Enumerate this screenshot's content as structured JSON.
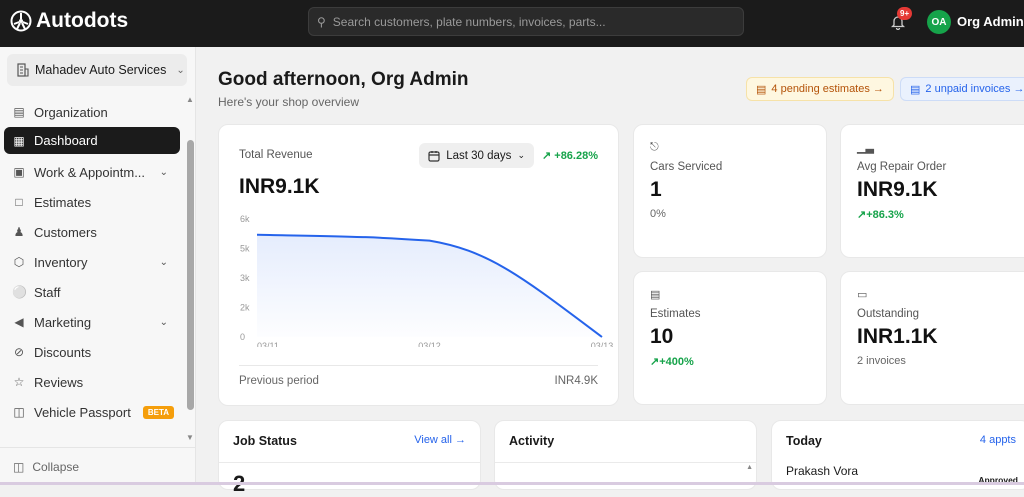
{
  "header": {
    "app_name": "Autodots",
    "search_placeholder": "Search customers, plate numbers, invoices, parts...",
    "notification_count": "9+",
    "user_initials": "OA",
    "user_name": "Org Admin",
    "avatar_color": "#16a34a"
  },
  "sidebar": {
    "org_name": "Mahadev Auto Services",
    "items": [
      {
        "label": "Organization",
        "icon": "building-icon"
      },
      {
        "label": "Dashboard",
        "icon": "grid-icon",
        "active": true
      },
      {
        "label": "Work & Appointm...",
        "icon": "calendar-icon",
        "expandable": true
      },
      {
        "label": "Estimates",
        "icon": "document-icon"
      },
      {
        "label": "Customers",
        "icon": "users-icon"
      },
      {
        "label": "Inventory",
        "icon": "box-icon",
        "expandable": true
      },
      {
        "label": "Staff",
        "icon": "staff-icon"
      },
      {
        "label": "Marketing",
        "icon": "megaphone-icon",
        "expandable": true
      },
      {
        "label": "Discounts",
        "icon": "discount-icon"
      },
      {
        "label": "Reviews",
        "icon": "star-icon"
      },
      {
        "label": "Vehicle Passport",
        "icon": "book-icon",
        "badge": "BETA"
      }
    ],
    "collapse_label": "Collapse"
  },
  "main": {
    "greeting": "Good afternoon, Org Admin",
    "subtitle": "Here's your shop overview",
    "pending_estimates": "4 pending estimates →",
    "unpaid_invoices": "2 unpaid invoices →",
    "revenue": {
      "title": "Total Revenue",
      "range": "Last 30 days",
      "change": "+86.28%",
      "value": "INR9.1K",
      "previous_label": "Previous period",
      "previous_value": "INR4.9K"
    },
    "stats": [
      {
        "label": "Cars Serviced",
        "value": "1",
        "extra": "0%",
        "icon": "car-icon"
      },
      {
        "label": "Avg Repair Order",
        "value": "INR9.1K",
        "extra": "+86.3%",
        "icon": "bar-chart-icon"
      },
      {
        "label": "Estimates",
        "value": "10",
        "extra": "+400%",
        "icon": "document-icon"
      },
      {
        "label": "Outstanding",
        "value": "INR1.1K",
        "extra": "2 invoices",
        "icon": "card-icon"
      }
    ],
    "job_status": {
      "title": "Job Status",
      "link": "View all →",
      "count": "2"
    },
    "activity": {
      "title": "Activity"
    },
    "today": {
      "title": "Today",
      "link": "4 appts",
      "first_name": "Prakash Vora",
      "first_status": "Approved"
    }
  },
  "chart_data": {
    "type": "area",
    "x": [
      "03/11",
      "03/12",
      "03/13"
    ],
    "values": [
      5200,
      4900,
      0
    ],
    "y_ticks": [
      "0",
      "2k",
      "3k",
      "5k",
      "6k"
    ],
    "ylim": [
      0,
      6000
    ],
    "line_color": "#2563eb",
    "grid": false
  }
}
